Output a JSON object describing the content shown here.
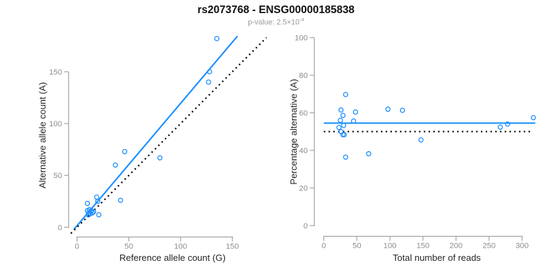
{
  "header": {
    "title": "rs2073768 - ENSG00000185838",
    "pvalue_base": "p-value: 2.5×10",
    "pvalue_exponent": "-4"
  },
  "colors": {
    "accent_blue": "#1E90FF",
    "identity_black": "#000000",
    "axis_gray": "#A3A3A3",
    "tick_text_gray": "#8C8C8C",
    "axis_title_dark": "#262626",
    "subtitle_gray": "#9A9A9A"
  },
  "chart_data": [
    {
      "type": "scatter",
      "panel": "left",
      "xlabel": "Reference allele count (G)",
      "ylabel": "Alternative allele count (A)",
      "xticks": [
        0,
        50,
        100,
        150
      ],
      "yticks": [
        0,
        50,
        100,
        150
      ],
      "xlim": [
        -7,
        185
      ],
      "ylim": [
        -6,
        190
      ],
      "grid": false,
      "points": [
        [
          10,
          23
        ],
        [
          10,
          16
        ],
        [
          12,
          17
        ],
        [
          19,
          29
        ],
        [
          37,
          60
        ],
        [
          46,
          73
        ],
        [
          11,
          14
        ],
        [
          11,
          12
        ],
        [
          20,
          25
        ],
        [
          14,
          16
        ],
        [
          13,
          13
        ],
        [
          15,
          14
        ],
        [
          16,
          15
        ],
        [
          21,
          12
        ],
        [
          42,
          26
        ],
        [
          80,
          67
        ],
        [
          127,
          140
        ],
        [
          128,
          150
        ],
        [
          135,
          182
        ]
      ],
      "lines": [
        {
          "name": "fit-line",
          "slope": 1.18,
          "intercept": 1.5,
          "x_from": -3,
          "x_to": 155,
          "style": "solid",
          "color": "#1E90FF"
        },
        {
          "name": "identity-line",
          "slope": 1,
          "intercept": 0,
          "x_from": -6,
          "x_to": 183,
          "style": "dotted",
          "color": "#000000"
        }
      ]
    },
    {
      "type": "scatter",
      "panel": "right",
      "xlabel": "Total number of reads",
      "ylabel": "Percentage alternative (A)",
      "xticks": [
        0,
        50,
        100,
        150,
        200,
        250,
        300
      ],
      "yticks": [
        0,
        20,
        40,
        60,
        80,
        100
      ],
      "xlim": [
        -13,
        332
      ],
      "ylim": [
        -4,
        104
      ],
      "grid": false,
      "points": [
        [
          33,
          69.7
        ],
        [
          26,
          61.5
        ],
        [
          29,
          58.6
        ],
        [
          48,
          60.4
        ],
        [
          97,
          61.9
        ],
        [
          119,
          61.3
        ],
        [
          25,
          56.0
        ],
        [
          23,
          52.2
        ],
        [
          45,
          55.6
        ],
        [
          30,
          53.3
        ],
        [
          26,
          50.0
        ],
        [
          29,
          48.3
        ],
        [
          31,
          48.4
        ],
        [
          33,
          36.4
        ],
        [
          68,
          38.2
        ],
        [
          147,
          45.6
        ],
        [
          267,
          52.4
        ],
        [
          278,
          54.0
        ],
        [
          317,
          57.4
        ]
      ],
      "lines": [
        {
          "name": "mean-line",
          "slope": 0,
          "intercept": 54.5,
          "x_from": 0,
          "x_to": 320,
          "style": "solid",
          "color": "#1E90FF"
        },
        {
          "name": "fifty-percent-line",
          "slope": 0,
          "intercept": 50,
          "x_from": 0,
          "x_to": 312,
          "style": "dotted",
          "color": "#000000"
        }
      ]
    }
  ]
}
